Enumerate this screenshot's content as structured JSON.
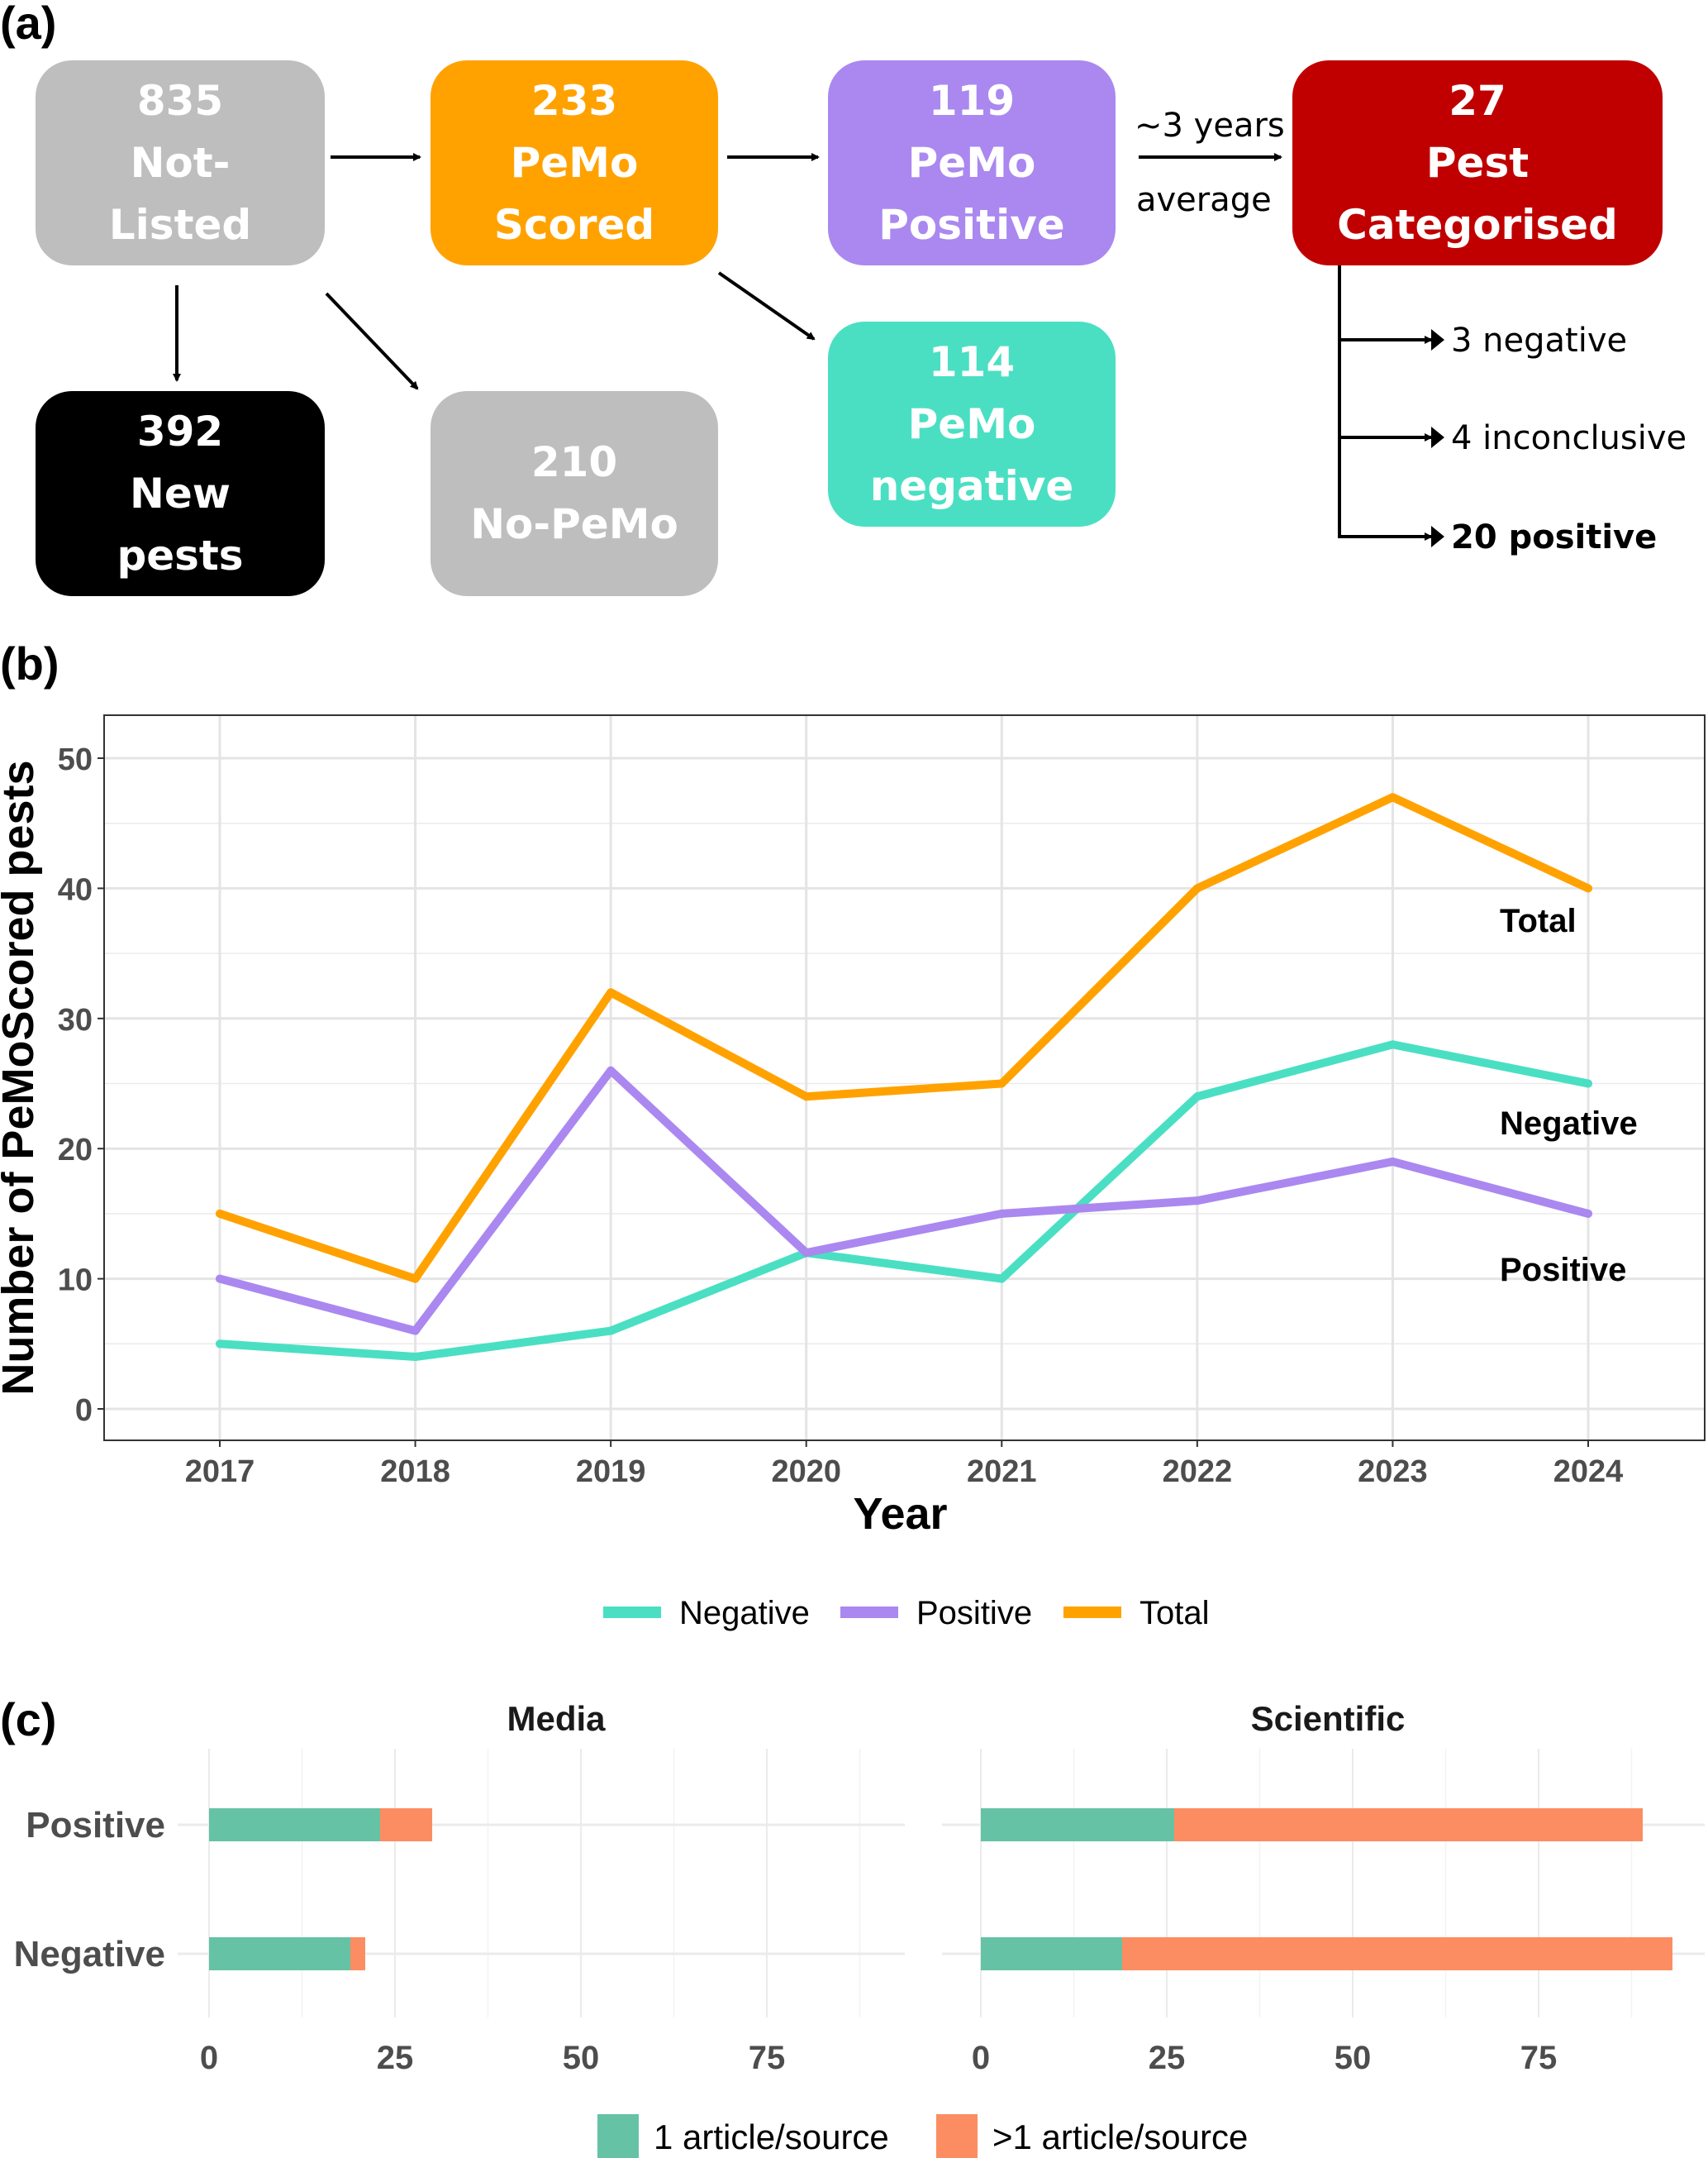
{
  "panel_a": {
    "label": "(a)",
    "boxes": [
      {
        "id": "not-listed",
        "lines": [
          "835",
          "Not-",
          "Listed"
        ],
        "color": "#BEBEBE"
      },
      {
        "id": "pemo-scored",
        "lines": [
          "233",
          "PeMo",
          "Scored"
        ],
        "color": "#FFA200"
      },
      {
        "id": "pemo-positive",
        "lines": [
          "119",
          "PeMo",
          "Positive"
        ],
        "color": "#AA88F0"
      },
      {
        "id": "pest-categorised",
        "lines": [
          "27",
          "Pest",
          "Categorised"
        ],
        "color": "#C00000"
      },
      {
        "id": "new-pests",
        "lines": [
          "392",
          "New",
          "pests"
        ],
        "color": "#000000"
      },
      {
        "id": "no-pemo",
        "lines": [
          "210",
          "No-PeMo"
        ],
        "color": "#BEBEBE"
      },
      {
        "id": "pemo-negative",
        "lines": [
          "114",
          "PeMo",
          "negative"
        ],
        "color": "#4ADFC3"
      }
    ],
    "arrow_label_top": "~3 years",
    "arrow_label_bottom": "average",
    "outcomes": [
      {
        "text": "3 negative",
        "bold": false
      },
      {
        "text": "4 inconclusive",
        "bold": false
      },
      {
        "text": "20 positive",
        "bold": true
      }
    ]
  },
  "panel_b": {
    "label": "(b)"
  },
  "panel_c": {
    "label": "(c)"
  },
  "chart_data": [
    {
      "type": "line",
      "title": "",
      "xlabel": "Year",
      "ylabel": "Number of PeMoScored pests",
      "x": [
        2017,
        2018,
        2019,
        2020,
        2021,
        2022,
        2023,
        2024
      ],
      "ylim": [
        0,
        50
      ],
      "yticks": [
        0,
        10,
        20,
        30,
        40,
        50
      ],
      "grid": true,
      "legend_position": "bottom",
      "series": [
        {
          "name": "Negative",
          "color": "#4ADFC3",
          "values": [
            5,
            4,
            6,
            12,
            10,
            24,
            28,
            25
          ],
          "end_label": "Negative"
        },
        {
          "name": "Positive",
          "color": "#AA88F0",
          "values": [
            10,
            6,
            26,
            12,
            15,
            16,
            19,
            15
          ],
          "end_label": "Positive"
        },
        {
          "name": "Total",
          "color": "#FFA200",
          "values": [
            15,
            10,
            32,
            24,
            25,
            40,
            47,
            40
          ],
          "end_label": "Total"
        }
      ]
    },
    {
      "type": "bar",
      "orientation": "horizontal",
      "stacked": true,
      "facets": [
        "Media",
        "Scientific"
      ],
      "categories": [
        "Positive",
        "Negative"
      ],
      "xticks": [
        0,
        25,
        50,
        75
      ],
      "xlim": [
        0,
        95
      ],
      "legend_position": "bottom",
      "series": [
        {
          "name": "1 article/source",
          "color": "#66C2A5",
          "values": {
            "Media": [
              23,
              19
            ],
            "Scientific": [
              26,
              19
            ]
          }
        },
        {
          "name": ">1 article/source",
          "color": "#FC8D62",
          "values": {
            "Media": [
              7,
              2
            ],
            "Scientific": [
              63,
              74
            ]
          }
        }
      ]
    }
  ]
}
